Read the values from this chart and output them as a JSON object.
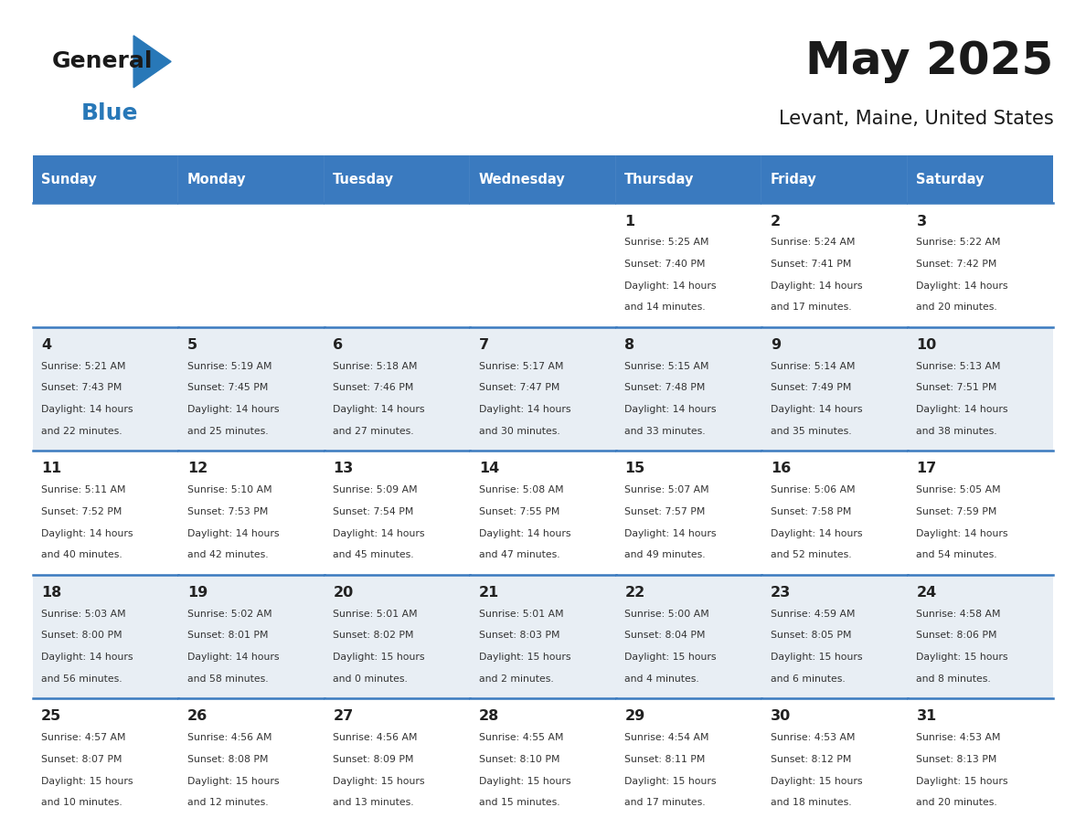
{
  "title": "May 2025",
  "subtitle": "Levant, Maine, United States",
  "header_bg": "#3a7abf",
  "header_text": "#ffffff",
  "cell_bg_light": "#e8eef4",
  "cell_bg_white": "#ffffff",
  "border_color": "#3a7abf",
  "text_color": "#333333",
  "day_num_color": "#222222",
  "day_headers": [
    "Sunday",
    "Monday",
    "Tuesday",
    "Wednesday",
    "Thursday",
    "Friday",
    "Saturday"
  ],
  "weeks": [
    [
      {
        "day": "",
        "sunrise": "",
        "sunset": "",
        "daylight": ""
      },
      {
        "day": "",
        "sunrise": "",
        "sunset": "",
        "daylight": ""
      },
      {
        "day": "",
        "sunrise": "",
        "sunset": "",
        "daylight": ""
      },
      {
        "day": "",
        "sunrise": "",
        "sunset": "",
        "daylight": ""
      },
      {
        "day": "1",
        "sunrise": "5:25 AM",
        "sunset": "7:40 PM",
        "daylight": "14 hours\nand 14 minutes."
      },
      {
        "day": "2",
        "sunrise": "5:24 AM",
        "sunset": "7:41 PM",
        "daylight": "14 hours\nand 17 minutes."
      },
      {
        "day": "3",
        "sunrise": "5:22 AM",
        "sunset": "7:42 PM",
        "daylight": "14 hours\nand 20 minutes."
      }
    ],
    [
      {
        "day": "4",
        "sunrise": "5:21 AM",
        "sunset": "7:43 PM",
        "daylight": "14 hours\nand 22 minutes."
      },
      {
        "day": "5",
        "sunrise": "5:19 AM",
        "sunset": "7:45 PM",
        "daylight": "14 hours\nand 25 minutes."
      },
      {
        "day": "6",
        "sunrise": "5:18 AM",
        "sunset": "7:46 PM",
        "daylight": "14 hours\nand 27 minutes."
      },
      {
        "day": "7",
        "sunrise": "5:17 AM",
        "sunset": "7:47 PM",
        "daylight": "14 hours\nand 30 minutes."
      },
      {
        "day": "8",
        "sunrise": "5:15 AM",
        "sunset": "7:48 PM",
        "daylight": "14 hours\nand 33 minutes."
      },
      {
        "day": "9",
        "sunrise": "5:14 AM",
        "sunset": "7:49 PM",
        "daylight": "14 hours\nand 35 minutes."
      },
      {
        "day": "10",
        "sunrise": "5:13 AM",
        "sunset": "7:51 PM",
        "daylight": "14 hours\nand 38 minutes."
      }
    ],
    [
      {
        "day": "11",
        "sunrise": "5:11 AM",
        "sunset": "7:52 PM",
        "daylight": "14 hours\nand 40 minutes."
      },
      {
        "day": "12",
        "sunrise": "5:10 AM",
        "sunset": "7:53 PM",
        "daylight": "14 hours\nand 42 minutes."
      },
      {
        "day": "13",
        "sunrise": "5:09 AM",
        "sunset": "7:54 PM",
        "daylight": "14 hours\nand 45 minutes."
      },
      {
        "day": "14",
        "sunrise": "5:08 AM",
        "sunset": "7:55 PM",
        "daylight": "14 hours\nand 47 minutes."
      },
      {
        "day": "15",
        "sunrise": "5:07 AM",
        "sunset": "7:57 PM",
        "daylight": "14 hours\nand 49 minutes."
      },
      {
        "day": "16",
        "sunrise": "5:06 AM",
        "sunset": "7:58 PM",
        "daylight": "14 hours\nand 52 minutes."
      },
      {
        "day": "17",
        "sunrise": "5:05 AM",
        "sunset": "7:59 PM",
        "daylight": "14 hours\nand 54 minutes."
      }
    ],
    [
      {
        "day": "18",
        "sunrise": "5:03 AM",
        "sunset": "8:00 PM",
        "daylight": "14 hours\nand 56 minutes."
      },
      {
        "day": "19",
        "sunrise": "5:02 AM",
        "sunset": "8:01 PM",
        "daylight": "14 hours\nand 58 minutes."
      },
      {
        "day": "20",
        "sunrise": "5:01 AM",
        "sunset": "8:02 PM",
        "daylight": "15 hours\nand 0 minutes."
      },
      {
        "day": "21",
        "sunrise": "5:01 AM",
        "sunset": "8:03 PM",
        "daylight": "15 hours\nand 2 minutes."
      },
      {
        "day": "22",
        "sunrise": "5:00 AM",
        "sunset": "8:04 PM",
        "daylight": "15 hours\nand 4 minutes."
      },
      {
        "day": "23",
        "sunrise": "4:59 AM",
        "sunset": "8:05 PM",
        "daylight": "15 hours\nand 6 minutes."
      },
      {
        "day": "24",
        "sunrise": "4:58 AM",
        "sunset": "8:06 PM",
        "daylight": "15 hours\nand 8 minutes."
      }
    ],
    [
      {
        "day": "25",
        "sunrise": "4:57 AM",
        "sunset": "8:07 PM",
        "daylight": "15 hours\nand 10 minutes."
      },
      {
        "day": "26",
        "sunrise": "4:56 AM",
        "sunset": "8:08 PM",
        "daylight": "15 hours\nand 12 minutes."
      },
      {
        "day": "27",
        "sunrise": "4:56 AM",
        "sunset": "8:09 PM",
        "daylight": "15 hours\nand 13 minutes."
      },
      {
        "day": "28",
        "sunrise": "4:55 AM",
        "sunset": "8:10 PM",
        "daylight": "15 hours\nand 15 minutes."
      },
      {
        "day": "29",
        "sunrise": "4:54 AM",
        "sunset": "8:11 PM",
        "daylight": "15 hours\nand 17 minutes."
      },
      {
        "day": "30",
        "sunrise": "4:53 AM",
        "sunset": "8:12 PM",
        "daylight": "15 hours\nand 18 minutes."
      },
      {
        "day": "31",
        "sunrise": "4:53 AM",
        "sunset": "8:13 PM",
        "daylight": "15 hours\nand 20 minutes."
      }
    ]
  ]
}
